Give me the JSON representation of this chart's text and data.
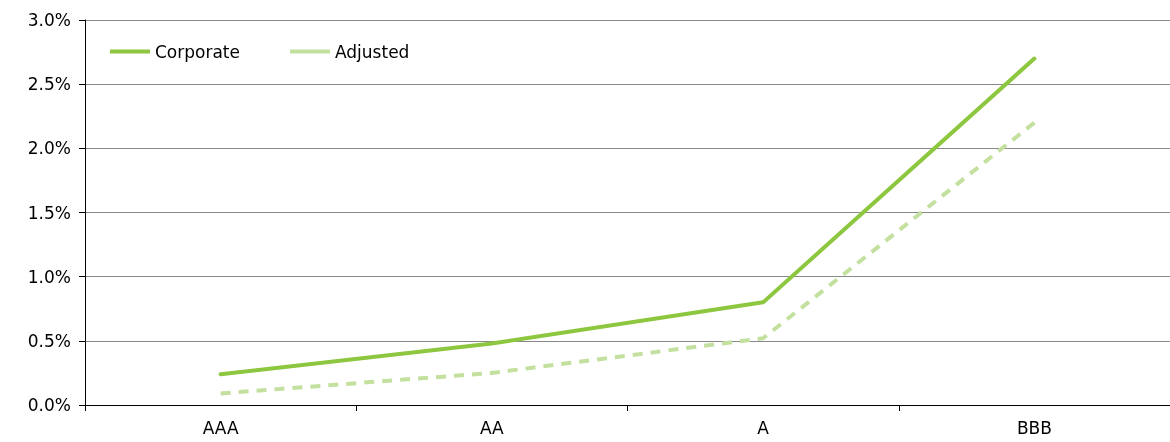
{
  "chart_data": {
    "type": "line",
    "categories": [
      "AAA",
      "AA",
      "A",
      "BBB"
    ],
    "series": [
      {
        "name": "Corporate",
        "color": "#8dc63f",
        "line_style": "solid",
        "values": [
          0.24,
          0.48,
          0.8,
          2.7
        ]
      },
      {
        "name": "Adjusted",
        "color": "#c3e09e",
        "line_style": "dashed",
        "values": [
          0.09,
          0.25,
          0.52,
          2.2
        ]
      }
    ],
    "ylim": [
      0,
      3
    ],
    "yticks": [
      {
        "value": 0,
        "label": "0.0%"
      },
      {
        "value": 0.5,
        "label": "0.5%"
      },
      {
        "value": 1,
        "label": "1.0%"
      },
      {
        "value": 1.5,
        "label": "1.5%"
      },
      {
        "value": 2,
        "label": "2.0%"
      },
      {
        "value": 2.5,
        "label": "2.5%"
      },
      {
        "value": 3,
        "label": "3.0%"
      }
    ],
    "grid": "y",
    "legend": "top left",
    "marker": "none"
  }
}
